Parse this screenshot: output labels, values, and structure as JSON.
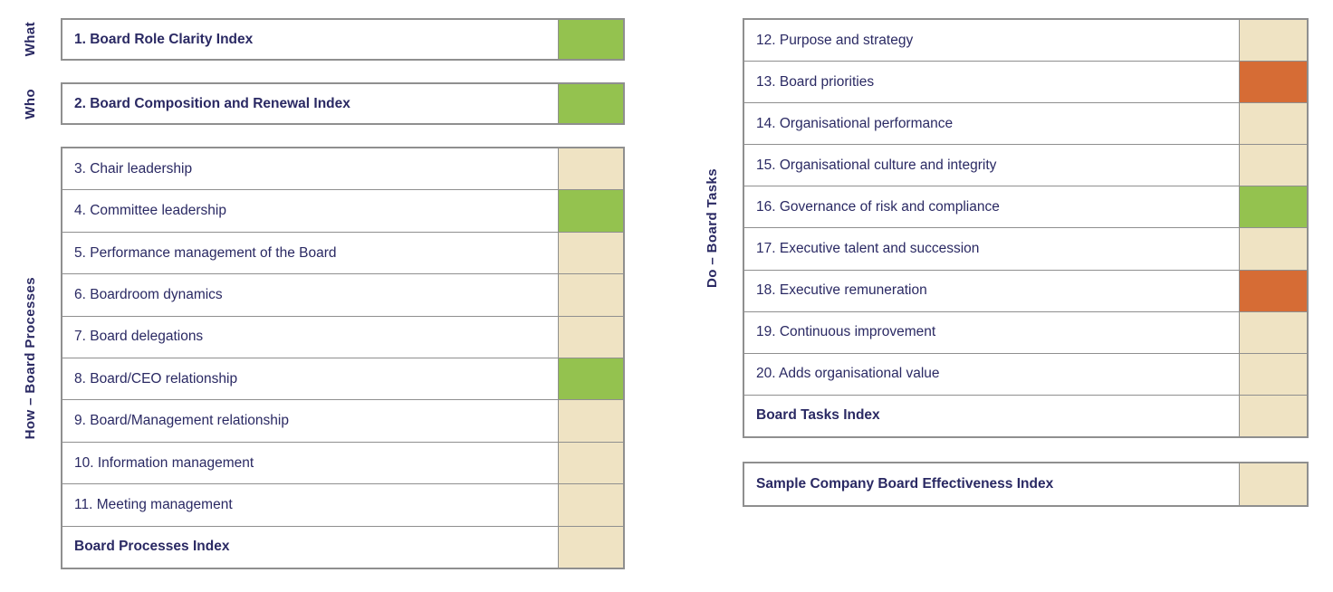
{
  "title": "Board Effectiveness Index dashboard",
  "colors": {
    "green": "#94c24f",
    "orange": "#d66c35",
    "beige": "#efe3c3",
    "navy_text": "#2a2963",
    "border_gray": "#8f8f8f"
  },
  "status_names": [
    "green",
    "orange",
    "beige"
  ],
  "left_column": {
    "panels": [
      {
        "key": "what",
        "side_label": "What",
        "rows": [
          {
            "text": "1. Board Role Clarity Index",
            "bold": true,
            "status": "green"
          }
        ]
      },
      {
        "key": "who",
        "side_label": "Who",
        "rows": [
          {
            "text": "2. Board Composition and Renewal Index",
            "bold": true,
            "status": "green"
          }
        ]
      },
      {
        "key": "processes",
        "side_label": "How – Board Processes",
        "rows": [
          {
            "text": "3. Chair leadership",
            "bold": false,
            "status": "beige"
          },
          {
            "text": "4. Committee leadership",
            "bold": false,
            "status": "green"
          },
          {
            "text": "5. Performance management of the Board",
            "bold": false,
            "status": "beige"
          },
          {
            "text": "6. Boardroom dynamics",
            "bold": false,
            "status": "beige"
          },
          {
            "text": "7. Board delegations",
            "bold": false,
            "status": "beige"
          },
          {
            "text": "8. Board/CEO relationship",
            "bold": false,
            "status": "green"
          },
          {
            "text": "9. Board/Management relationship",
            "bold": false,
            "status": "beige"
          },
          {
            "text": "10. Information management",
            "bold": false,
            "status": "beige"
          },
          {
            "text": "11. Meeting management",
            "bold": false,
            "status": "beige"
          },
          {
            "text": "Board Processes Index",
            "bold": true,
            "status": "beige"
          }
        ]
      }
    ]
  },
  "right_column": {
    "panels": [
      {
        "key": "tasks",
        "side_label": "Do – Board Tasks",
        "rows": [
          {
            "text": "12. Purpose and strategy",
            "bold": false,
            "status": "beige"
          },
          {
            "text": "13. Board priorities",
            "bold": false,
            "status": "orange"
          },
          {
            "text": "14. Organisational performance",
            "bold": false,
            "status": "beige"
          },
          {
            "text": "15. Organisational culture and integrity",
            "bold": false,
            "status": "beige"
          },
          {
            "text": "16. Governance of risk and compliance",
            "bold": false,
            "status": "green"
          },
          {
            "text": "17. Executive talent and succession",
            "bold": false,
            "status": "beige"
          },
          {
            "text": "18. Executive remuneration",
            "bold": false,
            "status": "orange"
          },
          {
            "text": "19. Continuous improvement",
            "bold": false,
            "status": "beige"
          },
          {
            "text": "20. Adds organisational value",
            "bold": false,
            "status": "beige"
          },
          {
            "text": "Board Tasks Index",
            "bold": true,
            "status": "beige"
          }
        ]
      },
      {
        "key": "sample",
        "side_label": "",
        "rows": [
          {
            "text": "Sample Company Board Effectiveness Index",
            "bold": true,
            "status": "beige"
          }
        ]
      }
    ]
  }
}
